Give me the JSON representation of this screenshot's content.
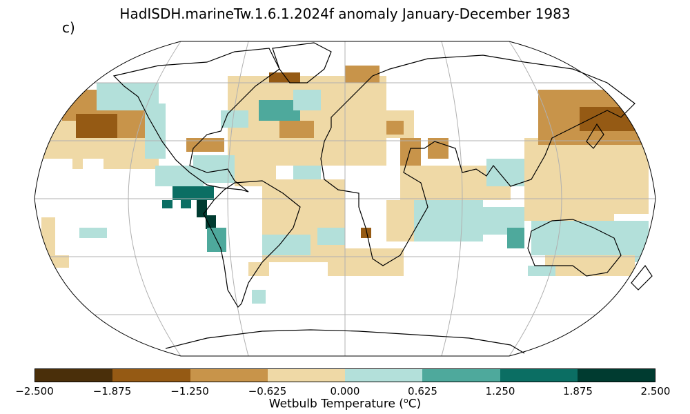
{
  "title": "HadISDH.marineTw.1.6.1.2024f anomaly January-December 1983",
  "panel_label": "c)",
  "colorbar": {
    "label_main": "Wetbulb Temperature (",
    "label_sup": "o",
    "label_unit": "C)",
    "ticks": [
      "−2.500",
      "−1.875",
      "−1.250",
      "−0.625",
      "0.000",
      "0.625",
      "1.250",
      "1.875",
      "2.500"
    ],
    "colors": [
      "#4a2f0a",
      "#955a14",
      "#c8944a",
      "#efd9a6",
      "#b3e0da",
      "#4ea99c",
      "#0b6e63",
      "#003b30"
    ]
  },
  "map": {
    "projection": "robinson",
    "land_color": "#ffffff",
    "coast_color": "#000000",
    "grid_color": "#b0b0b0"
  }
}
